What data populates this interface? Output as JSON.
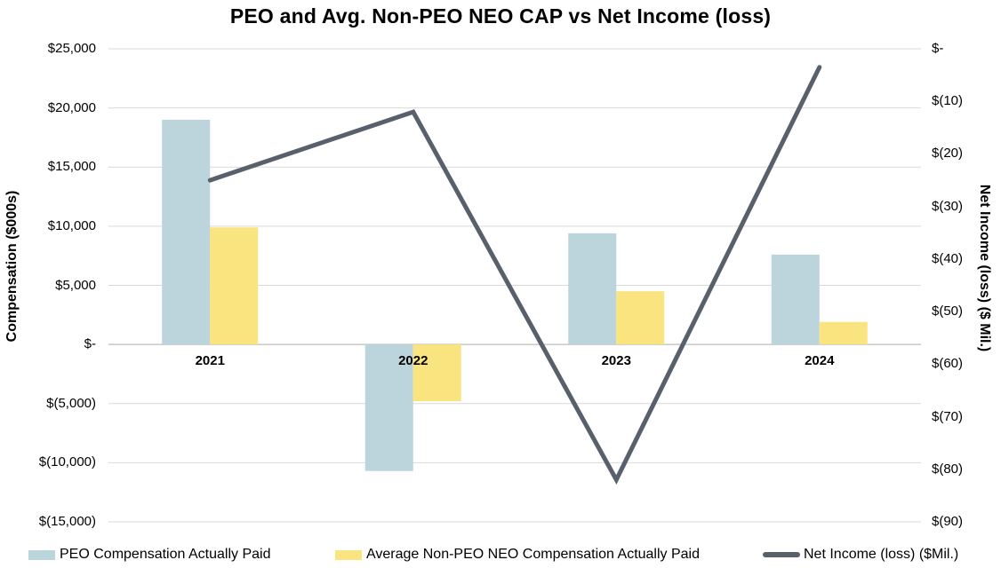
{
  "chart_data": {
    "type": "bar+line",
    "title": "PEO and Avg. Non-PEO NEO CAP vs Net Income (loss)",
    "categories": [
      "2021",
      "2022",
      "2023",
      "2024"
    ],
    "series": [
      {
        "name": "PEO Compensation Actually Paid",
        "type": "bar",
        "axis": "left",
        "color": "#BCD4DB",
        "values": [
          19000,
          -10700,
          9400,
          7600
        ]
      },
      {
        "name": "Average Non-PEO NEO Compensation Actually Paid",
        "type": "bar",
        "axis": "left",
        "color": "#FAE47F",
        "values": [
          9900,
          -4800,
          4500,
          1900
        ]
      },
      {
        "name": "Net Income (loss) ($Mil.)",
        "type": "line",
        "axis": "right",
        "color": "#57606B",
        "values": [
          -25,
          -12,
          -82,
          -3.5
        ]
      }
    ],
    "left_axis": {
      "label": "Compensation ($000s)",
      "max": 25000,
      "min": -15000,
      "step": 5000,
      "ticks": [
        "$25,000",
        "$20,000",
        "$15,000",
        "$10,000",
        "$5,000",
        "$-",
        "$(5,000)",
        "$(10,000)",
        "$(15,000)"
      ]
    },
    "right_axis": {
      "label": "Net Income (loss) ($ Mil.)",
      "max": 0,
      "min": -90,
      "step": 10,
      "ticks": [
        "$-",
        "$(10)",
        "$(20)",
        "$(30)",
        "$(40)",
        "$(50)",
        "$(60)",
        "$(70)",
        "$(80)",
        "$(90)"
      ]
    },
    "grid": true,
    "legend_position": "bottom",
    "colors": {
      "gridline": "#D9D9D9",
      "zero_line": "#C8C8C8",
      "text": "#000000",
      "background": "#FFFFFF"
    }
  },
  "legend": [
    {
      "label": "PEO Compensation Actually Paid",
      "marker": "bar-swatch",
      "color": "#BCD4DB"
    },
    {
      "label": "Average Non-PEO NEO Compensation Actually Paid",
      "marker": "bar-swatch",
      "color": "#FAE47F"
    },
    {
      "label": "Net Income (loss) ($Mil.)",
      "marker": "line-swatch",
      "color": "#57606B"
    }
  ]
}
